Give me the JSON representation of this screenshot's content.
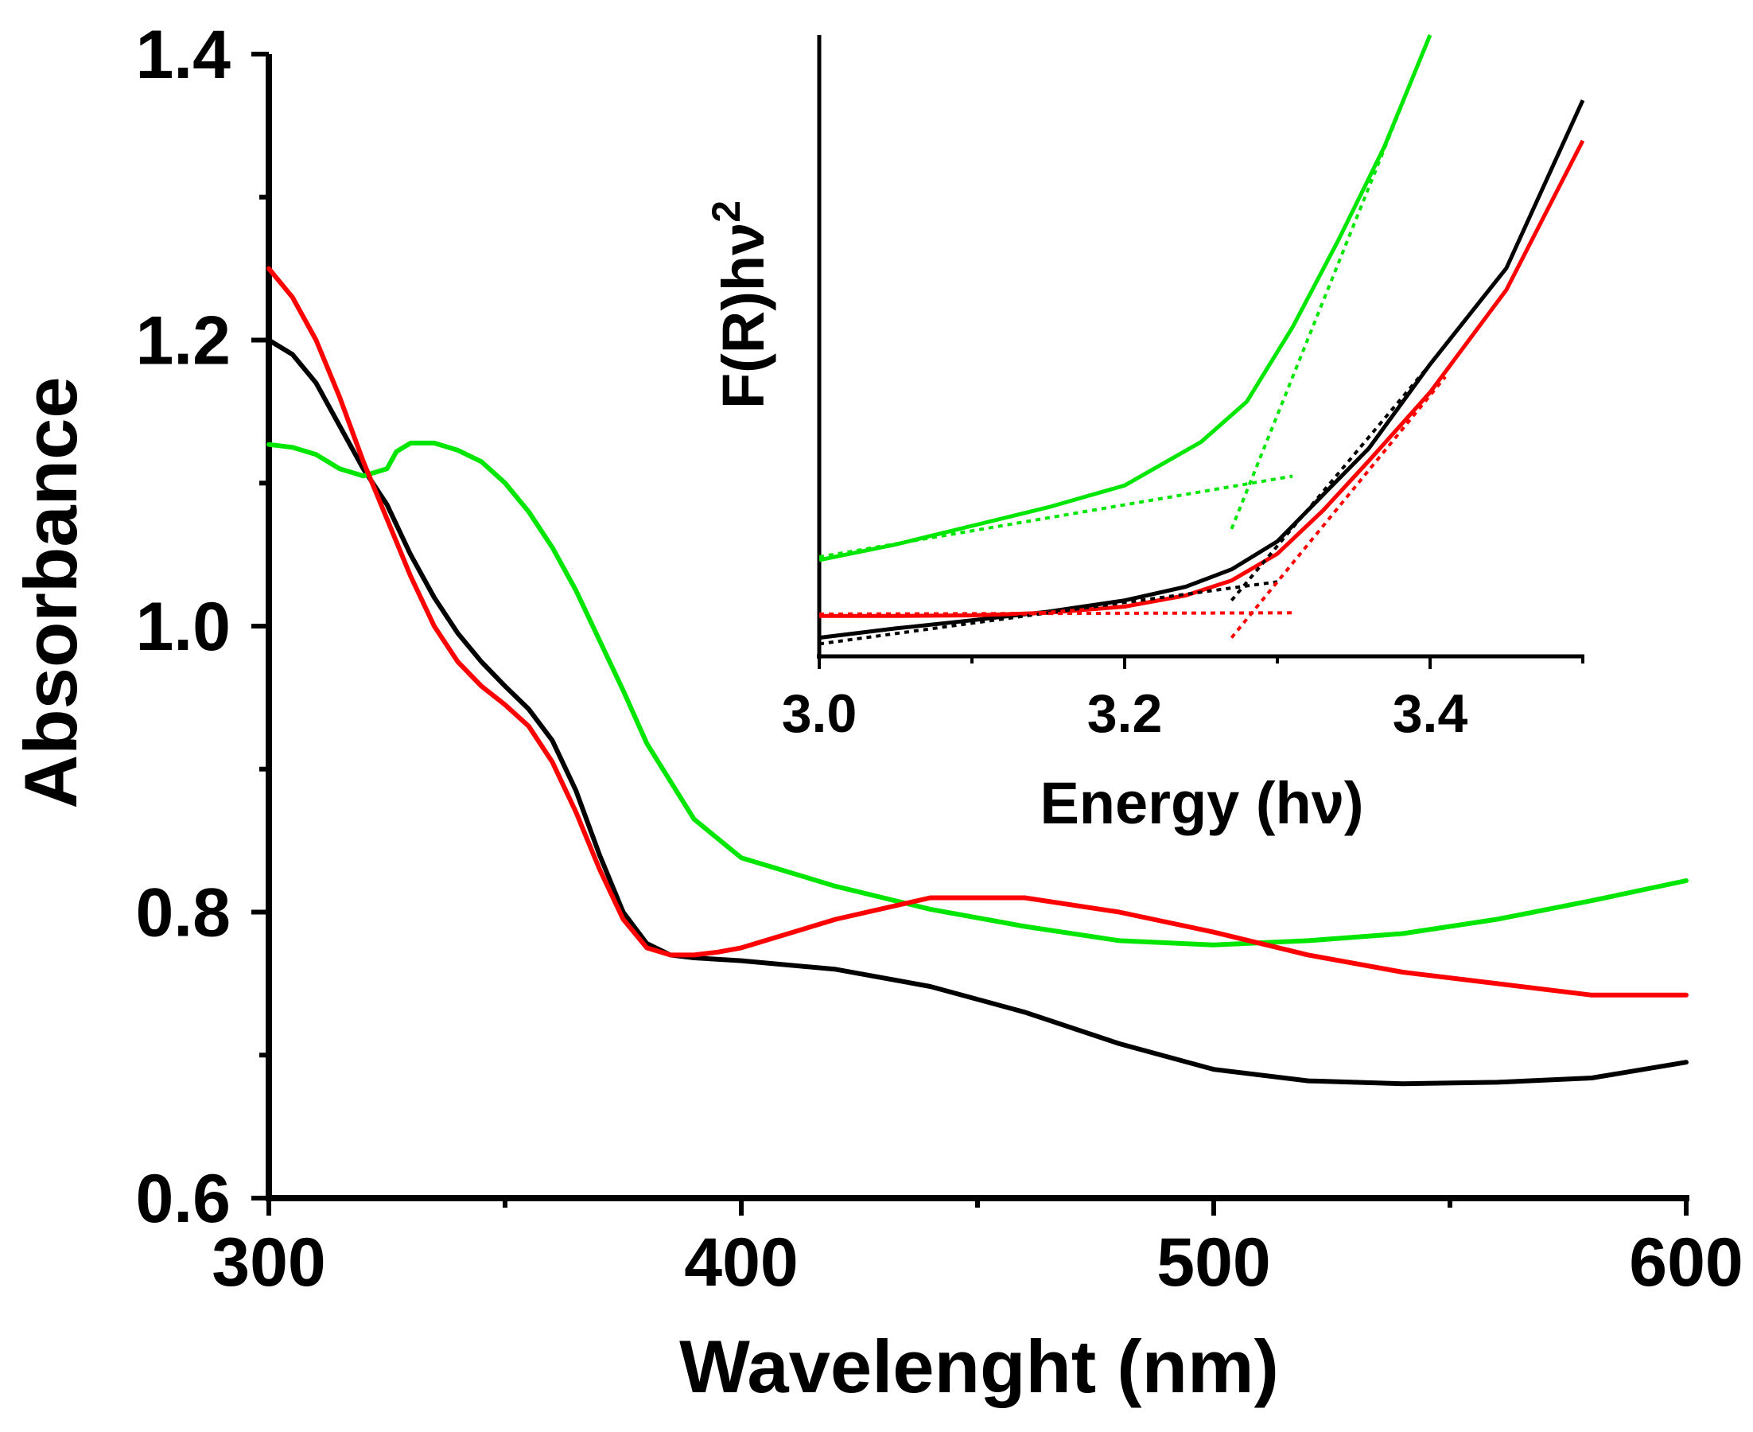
{
  "colors": {
    "black": "#000000",
    "red": "#ff0000",
    "green": "#00e600"
  },
  "chart_data": [
    {
      "type": "line",
      "xlabel": "Wavelenght (nm)",
      "ylabel": "Absorbance",
      "xlim": [
        300,
        600
      ],
      "ylim": [
        0.6,
        1.4
      ],
      "xticks": [
        300,
        400,
        500,
        600
      ],
      "xtick_labels": [
        "300",
        "400",
        "500",
        "600"
      ],
      "yticks": [
        0.6,
        0.8,
        1.0,
        1.2,
        1.4
      ],
      "ytick_labels": [
        "0.6",
        "0.8",
        "1.0",
        "1.2",
        "1.4"
      ],
      "series": [
        {
          "name": "black",
          "color": "#000000",
          "x": [
            300,
            305,
            310,
            315,
            320,
            325,
            330,
            335,
            340,
            345,
            350,
            355,
            360,
            365,
            370,
            375,
            380,
            385,
            390,
            400,
            420,
            440,
            460,
            480,
            500,
            520,
            540,
            560,
            580,
            600
          ],
          "y": [
            1.2,
            1.19,
            1.17,
            1.14,
            1.11,
            1.085,
            1.05,
            1.02,
            0.995,
            0.975,
            0.958,
            0.942,
            0.92,
            0.885,
            0.84,
            0.8,
            0.778,
            0.77,
            0.768,
            0.766,
            0.76,
            0.748,
            0.73,
            0.708,
            0.69,
            0.682,
            0.68,
            0.681,
            0.684,
            0.695
          ]
        },
        {
          "name": "red",
          "color": "#ff0000",
          "x": [
            300,
            305,
            310,
            315,
            320,
            325,
            330,
            335,
            340,
            345,
            350,
            355,
            360,
            365,
            370,
            375,
            380,
            385,
            390,
            395,
            400,
            420,
            440,
            460,
            480,
            500,
            520,
            540,
            560,
            580,
            600
          ],
          "y": [
            1.25,
            1.23,
            1.2,
            1.16,
            1.115,
            1.075,
            1.035,
            1.0,
            0.975,
            0.958,
            0.945,
            0.93,
            0.905,
            0.87,
            0.83,
            0.795,
            0.775,
            0.77,
            0.77,
            0.772,
            0.775,
            0.795,
            0.81,
            0.81,
            0.8,
            0.786,
            0.77,
            0.758,
            0.75,
            0.742,
            0.742
          ]
        },
        {
          "name": "green",
          "color": "#00e600",
          "x": [
            300,
            305,
            310,
            315,
            320,
            325,
            327,
            330,
            335,
            340,
            345,
            350,
            355,
            360,
            365,
            370,
            375,
            380,
            390,
            400,
            420,
            440,
            460,
            480,
            500,
            520,
            540,
            560,
            580,
            600
          ],
          "y": [
            1.127,
            1.125,
            1.12,
            1.11,
            1.105,
            1.11,
            1.122,
            1.128,
            1.128,
            1.123,
            1.115,
            1.1,
            1.08,
            1.055,
            1.025,
            0.99,
            0.955,
            0.918,
            0.865,
            0.838,
            0.818,
            0.802,
            0.79,
            0.78,
            0.777,
            0.78,
            0.785,
            0.795,
            0.808,
            0.822
          ]
        }
      ]
    },
    {
      "type": "line",
      "role": "inset",
      "xlabel": "Energy (hν)",
      "ylabel": "F(R)hν²",
      "ylabel_base": "F(R)hν",
      "ylabel_superscript": "2",
      "xlim": [
        3.0,
        3.5
      ],
      "ylim": [
        0,
        1
      ],
      "xticks": [
        3.0,
        3.2,
        3.4
      ],
      "xtick_labels": [
        "3.0",
        "3.2",
        "3.4"
      ],
      "series": [
        {
          "name": "black",
          "color": "#000000",
          "x": [
            3.0,
            3.05,
            3.1,
            3.15,
            3.2,
            3.24,
            3.27,
            3.3,
            3.33,
            3.36,
            3.4,
            3.45,
            3.5
          ],
          "y": [
            0.03,
            0.045,
            0.058,
            0.072,
            0.09,
            0.112,
            0.14,
            0.185,
            0.26,
            0.335,
            0.47,
            0.625,
            0.895
          ]
        },
        {
          "name": "red",
          "color": "#ff0000",
          "x": [
            3.0,
            3.05,
            3.1,
            3.15,
            3.2,
            3.24,
            3.27,
            3.3,
            3.33,
            3.36,
            3.4,
            3.45,
            3.5
          ],
          "y": [
            0.065,
            0.065,
            0.066,
            0.07,
            0.08,
            0.098,
            0.122,
            0.165,
            0.235,
            0.315,
            0.425,
            0.59,
            0.83
          ]
        },
        {
          "name": "green",
          "color": "#00e600",
          "x": [
            3.0,
            3.05,
            3.1,
            3.15,
            3.2,
            3.25,
            3.28,
            3.31,
            3.34,
            3.37,
            3.4
          ],
          "y": [
            0.155,
            0.18,
            0.21,
            0.24,
            0.275,
            0.345,
            0.41,
            0.53,
            0.67,
            0.82,
            1.0
          ]
        },
        {
          "name": "black-tangent",
          "color": "#000000",
          "dashed": true,
          "x": [
            3.0,
            3.3
          ],
          "y": [
            0.02,
            0.12
          ]
        },
        {
          "name": "black-tangent-steep",
          "color": "#000000",
          "dashed": true,
          "x": [
            3.27,
            3.4
          ],
          "y": [
            0.09,
            0.47
          ]
        },
        {
          "name": "red-tangent",
          "color": "#ff0000",
          "dashed": true,
          "x": [
            3.0,
            3.31
          ],
          "y": [
            0.068,
            0.07
          ]
        },
        {
          "name": "red-tangent-steep",
          "color": "#ff0000",
          "dashed": true,
          "x": [
            3.27,
            3.41
          ],
          "y": [
            0.03,
            0.45
          ]
        },
        {
          "name": "green-tangent",
          "color": "#00e600",
          "dashed": true,
          "x": [
            3.0,
            3.31
          ],
          "y": [
            0.16,
            0.29
          ]
        },
        {
          "name": "green-tangent-steep",
          "color": "#00e600",
          "dashed": true,
          "x": [
            3.27,
            3.4
          ],
          "y": [
            0.205,
            1.0
          ]
        }
      ]
    }
  ]
}
